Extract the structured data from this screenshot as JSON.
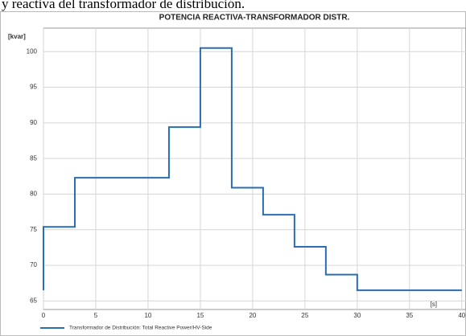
{
  "caption": "y reactiva del transformador de distribución.",
  "chart_data": {
    "type": "line",
    "step": "post",
    "title": "POTENCIA REACTIVA-TRANSFORMADOR DISTR.",
    "y_label": "[kvar]",
    "x_label": "[s]",
    "x": [
      0,
      0,
      3,
      12,
      15,
      18,
      21,
      24,
      27,
      30,
      40
    ],
    "series": [
      {
        "name": "Transformador de Distribución: Total Reactive Power/HV-Side",
        "color": "#2a6db3",
        "values": [
          66.5,
          75.4,
          82.3,
          89.4,
          100.5,
          80.9,
          77.1,
          72.6,
          68.7,
          66.5,
          66.5
        ]
      }
    ],
    "xlim": [
      0,
      40.4
    ],
    "ylim": [
      63.8,
      103.3
    ],
    "xticks": [
      0,
      5,
      10,
      15,
      20,
      25,
      30,
      35,
      40
    ],
    "yticks": [
      65,
      70,
      75,
      80,
      85,
      90,
      95,
      100
    ],
    "grid": true
  }
}
